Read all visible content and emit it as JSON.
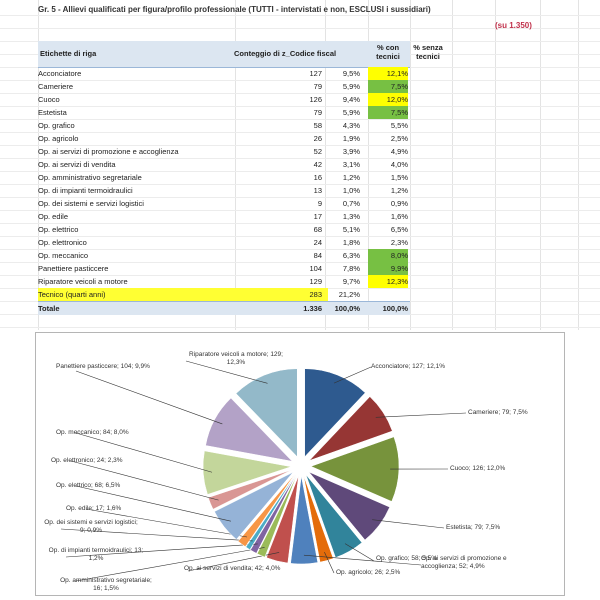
{
  "sheet": {
    "title": "Gr. 5 - Allievi qualificati per figura/profilo professionale (TUTTI - intervistati e non, ESCLUSI i sussidiari)",
    "note": "(su 1.350)",
    "headers": [
      "Etichette di riga",
      "Conteggio di z_Codice fiscal",
      "% con tecnici",
      "% senza tecnici"
    ],
    "rows": [
      {
        "label": "Acconciatore",
        "count": "127",
        "con": "9,5%",
        "senza": "12,1%",
        "hl": "yellow"
      },
      {
        "label": "Cameriere",
        "count": "79",
        "con": "5,9%",
        "senza": "7,5%",
        "hl": "green"
      },
      {
        "label": "Cuoco",
        "count": "126",
        "con": "9,4%",
        "senza": "12,0%",
        "hl": "yellow"
      },
      {
        "label": "Estetista",
        "count": "79",
        "con": "5,9%",
        "senza": "7,5%",
        "hl": "green"
      },
      {
        "label": "Op. grafico",
        "count": "58",
        "con": "4,3%",
        "senza": "5,5%",
        "hl": ""
      },
      {
        "label": "Op. agricolo",
        "count": "26",
        "con": "1,9%",
        "senza": "2,5%",
        "hl": ""
      },
      {
        "label": "Op. ai servizi di promozione e accoglienza",
        "count": "52",
        "con": "3,9%",
        "senza": "4,9%",
        "hl": ""
      },
      {
        "label": "Op. ai servizi di vendita",
        "count": "42",
        "con": "3,1%",
        "senza": "4,0%",
        "hl": ""
      },
      {
        "label": "Op. amministrativo segretariale",
        "count": "16",
        "con": "1,2%",
        "senza": "1,5%",
        "hl": ""
      },
      {
        "label": "Op. di impianti termoidraulici",
        "count": "13",
        "con": "1,0%",
        "senza": "1,2%",
        "hl": ""
      },
      {
        "label": "Op. dei sistemi e servizi logistici",
        "count": "9",
        "con": "0,7%",
        "senza": "0,9%",
        "hl": ""
      },
      {
        "label": "Op. edile",
        "count": "17",
        "con": "1,3%",
        "senza": "1,6%",
        "hl": ""
      },
      {
        "label": "Op. elettrico",
        "count": "68",
        "con": "5,1%",
        "senza": "6,5%",
        "hl": ""
      },
      {
        "label": "Op. elettronico",
        "count": "24",
        "con": "1,8%",
        "senza": "2,3%",
        "hl": ""
      },
      {
        "label": "Op. meccanico",
        "count": "84",
        "con": "6,3%",
        "senza": "8,0%",
        "hl": "green"
      },
      {
        "label": "Panettiere pasticcere",
        "count": "104",
        "con": "7,8%",
        "senza": "9,9%",
        "hl": "green"
      },
      {
        "label": "Riparatore veicoli a motore",
        "count": "129",
        "con": "9,7%",
        "senza": "12,3%",
        "hl": "yellow"
      },
      {
        "label": "Tecnico (quarti anni)",
        "count": "283",
        "con": "21,2%",
        "senza": "",
        "hl": "tecnico"
      }
    ],
    "total": {
      "label": "Totale",
      "count": "1.336",
      "con": "100,0%",
      "senza": "100,0%"
    },
    "highlight_colors": {
      "yellow": "#ffff00",
      "green": "#77c043",
      "header": "#dce6f1"
    }
  },
  "chart_data": {
    "type": "pie",
    "exploded": true,
    "start": "top, clockwise",
    "categories": [
      "Acconciatore",
      "Cameriere",
      "Cuoco",
      "Estetista",
      "Op. grafico",
      "Op. agricolo",
      "Op. ai servizi di promozione e accoglienza",
      "Op. ai servizi di vendita",
      "Op. amministrativo segretariale",
      "Op. di impianti termoidraulici",
      "Op. dei sistemi e servizi logistici",
      "Op. edile",
      "Op. elettrico",
      "Op. elettronico",
      "Op. meccanico",
      "Panettiere pasticcere",
      "Riparatore veicoli a motore"
    ],
    "values": [
      127,
      79,
      126,
      79,
      58,
      26,
      52,
      42,
      16,
      13,
      9,
      17,
      68,
      24,
      84,
      104,
      129
    ],
    "labels": [
      "Acconciatore; 127; 12,1%",
      "Cameriere; 79; 7,5%",
      "Cuoco; 126; 12,0%",
      "Estetista; 79; 7,5%",
      "Op. grafico; 58; 5,5%",
      "Op. agricolo; 26; 2,5%",
      "Op. ai servizi di promozione e accoglienza; 52; 4,9%",
      "Op. ai servizi di vendita; 42; 4,0%",
      "Op. amministrativo segretariale; 16; 1,5%",
      "Op. di impianti termoidraulici; 13; 1,2%",
      "Op. dei sistemi e servizi logistici; 9; 0,9%",
      "Op. edile; 17; 1,6%",
      "Op. elettrico; 68; 6,5%",
      "Op. elettronico; 24; 2,3%",
      "Op. meccanico; 84; 8,0%",
      "Panettiere pasticcere; 104; 9,9%",
      "Riparatore veicoli a motore; 129; 12,3%"
    ],
    "colors": [
      "#2e5a8f",
      "#963634",
      "#77933c",
      "#5f497a",
      "#31849b",
      "#e46c0a",
      "#4f81bd",
      "#c0504d",
      "#9bbb59",
      "#8064a2",
      "#4bacc6",
      "#f79646",
      "#95b3d7",
      "#d99694",
      "#c3d69b",
      "#b3a2c7",
      "#93b9c9"
    ]
  }
}
